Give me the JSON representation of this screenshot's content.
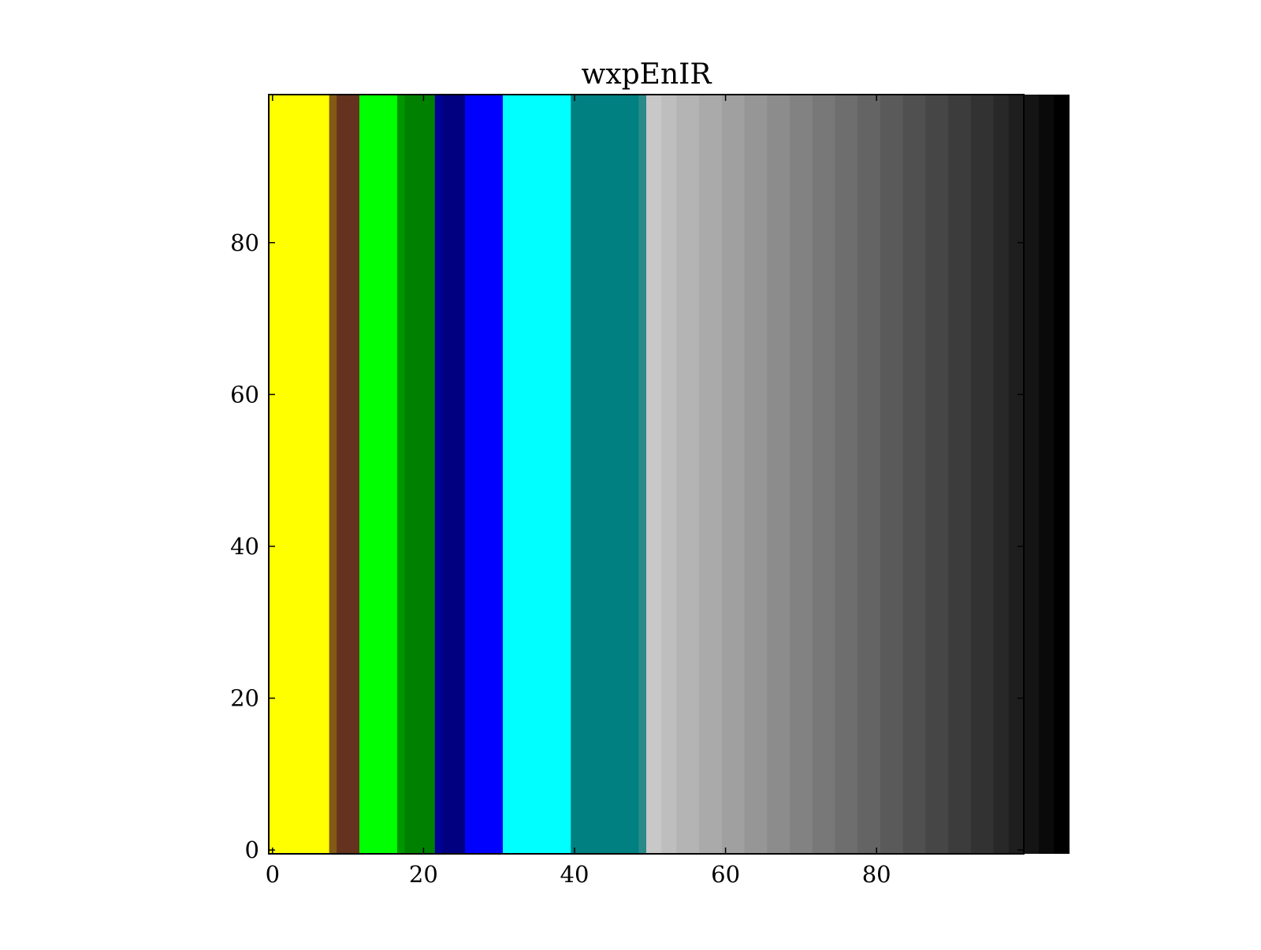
{
  "chart_data": {
    "type": "heatmap",
    "title": "wxpEnIR",
    "xlabel": "",
    "ylabel": "",
    "xlim": [
      -0.5,
      99.5
    ],
    "ylim": [
      -0.5,
      99.5
    ],
    "xticks": [
      0,
      20,
      40,
      60,
      80
    ],
    "yticks": [
      0,
      20,
      40,
      60,
      80
    ],
    "xtick_labels": [
      "0",
      "20",
      "40",
      "60",
      "80"
    ],
    "ytick_labels": [
      "0",
      "20",
      "40",
      "60",
      "80"
    ],
    "grid": false,
    "note_orientation": "columns vary along x; every row identical",
    "column_colors": [
      "#ffff00",
      "#ffff00",
      "#ffff00",
      "#ffff00",
      "#ffff00",
      "#ffff00",
      "#ffff00",
      "#ffff00",
      "#825a14",
      "#64321e",
      "#64321e",
      "#64321e",
      "#00ff00",
      "#00ff00",
      "#00ff00",
      "#00ff00",
      "#00ff00",
      "#009600",
      "#008000",
      "#008000",
      "#008000",
      "#008000",
      "#000096",
      "#000080",
      "#000080",
      "#000080",
      "#0000ff",
      "#0000ff",
      "#0000ff",
      "#0000ff",
      "#0000ff",
      "#00ffff",
      "#00ffff",
      "#00ffff",
      "#00ffff",
      "#00ffff",
      "#00ffff",
      "#00ffff",
      "#00ffff",
      "#00ffff",
      "#008080",
      "#008080",
      "#008080",
      "#008080",
      "#008080",
      "#008080",
      "#008080",
      "#008080",
      "#008080",
      "#2a8a8a",
      "#c8c8c8",
      "#c8c8c8",
      "#bebebe",
      "#bebebe",
      "#b4b4b4",
      "#b4b4b4",
      "#b4b4b4",
      "#aaaaaa",
      "#aaaaaa",
      "#aaaaaa",
      "#a0a0a0",
      "#a0a0a0",
      "#a0a0a0",
      "#969696",
      "#969696",
      "#969696",
      "#8c8c8c",
      "#8c8c8c",
      "#8c8c8c",
      "#828282",
      "#828282",
      "#828282",
      "#787878",
      "#787878",
      "#787878",
      "#6e6e6e",
      "#6e6e6e",
      "#6e6e6e",
      "#646464",
      "#646464",
      "#646464",
      "#5a5a5a",
      "#5a5a5a",
      "#5a5a5a",
      "#505050",
      "#505050",
      "#505050",
      "#464646",
      "#464646",
      "#464646",
      "#3c3c3c",
      "#3c3c3c",
      "#3c3c3c",
      "#323232",
      "#323232",
      "#323232",
      "#282828",
      "#282828",
      "#1e1e1e",
      "#1e1e1e",
      "#141414",
      "#141414",
      "#0a0a0a",
      "#0a0a0a",
      "#000000",
      "#000000"
    ]
  }
}
